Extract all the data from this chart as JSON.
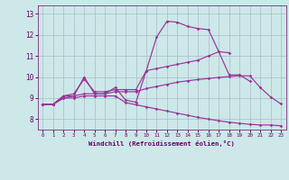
{
  "title": "",
  "xlabel": "Windchill (Refroidissement éolien,°C)",
  "bg_color": "#cce8e8",
  "line_color": "#993399",
  "grid_color": "#aabbcc",
  "xlim": [
    -0.5,
    23.5
  ],
  "ylim": [
    7.5,
    13.4
  ],
  "xticks": [
    0,
    1,
    2,
    3,
    4,
    5,
    6,
    7,
    8,
    9,
    10,
    11,
    12,
    13,
    14,
    15,
    16,
    17,
    18,
    19,
    20,
    21,
    22,
    23
  ],
  "yticks": [
    8,
    9,
    10,
    11,
    12,
    13
  ],
  "lines": [
    {
      "x": [
        0,
        1,
        2,
        3,
        4,
        5,
        6,
        7,
        8,
        9,
        10,
        11,
        12,
        13,
        14,
        15,
        16,
        17,
        18,
        19,
        20
      ],
      "y": [
        8.7,
        8.7,
        9.1,
        9.1,
        10.0,
        9.2,
        9.2,
        9.5,
        8.9,
        8.8,
        10.3,
        11.9,
        12.65,
        12.6,
        12.4,
        12.3,
        12.25,
        11.2,
        10.1,
        10.1,
        9.8
      ]
    },
    {
      "x": [
        0,
        1,
        2,
        3,
        4,
        5,
        6,
        7,
        8,
        9,
        10,
        11,
        12,
        13,
        14,
        15,
        16,
        17,
        18
      ],
      "y": [
        8.7,
        8.7,
        9.1,
        9.2,
        9.9,
        9.3,
        9.3,
        9.4,
        9.4,
        9.4,
        10.3,
        10.4,
        10.5,
        10.6,
        10.7,
        10.8,
        11.0,
        11.2,
        11.15
      ]
    },
    {
      "x": [
        0,
        1,
        2,
        3,
        4,
        5,
        6,
        7,
        8,
        9,
        10,
        11,
        12,
        13,
        14,
        15,
        16,
        17,
        18,
        19,
        20,
        21,
        22,
        23
      ],
      "y": [
        8.7,
        8.7,
        9.0,
        9.1,
        9.2,
        9.2,
        9.2,
        9.3,
        9.3,
        9.3,
        9.45,
        9.55,
        9.65,
        9.75,
        9.82,
        9.88,
        9.93,
        9.98,
        10.02,
        10.06,
        10.05,
        9.5,
        9.05,
        8.72
      ]
    },
    {
      "x": [
        0,
        1,
        2,
        3,
        4,
        5,
        6,
        7,
        8,
        9,
        10,
        11,
        12,
        13,
        14,
        15,
        16,
        17,
        18,
        19,
        20,
        21,
        22,
        23
      ],
      "y": [
        8.7,
        8.7,
        9.0,
        9.0,
        9.1,
        9.1,
        9.1,
        9.1,
        8.78,
        8.68,
        8.58,
        8.48,
        8.38,
        8.28,
        8.18,
        8.08,
        8.0,
        7.92,
        7.85,
        7.8,
        7.75,
        7.72,
        7.72,
        7.68
      ]
    }
  ]
}
